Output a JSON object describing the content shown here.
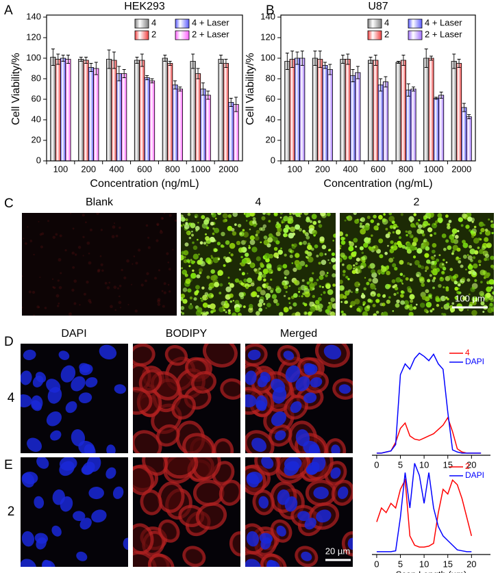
{
  "figure": {
    "panel_labels": [
      "A",
      "B",
      "C",
      "D",
      "E"
    ],
    "c_titles": [
      "Blank",
      "4",
      "2"
    ],
    "c_scale": "100 µm",
    "d_titles": [
      "DAPI",
      "BODIPY",
      "Merged"
    ],
    "d_rows": [
      "4",
      "2"
    ],
    "d_scale": "20 µm"
  },
  "chart_data": [
    {
      "type": "bar",
      "title": "HEK293",
      "x_label": "Concentration (ng/mL)",
      "y_label": "Cell Viability/%",
      "categories": [
        "100",
        "200",
        "400",
        "600",
        "800",
        "1000",
        "2000"
      ],
      "series": [
        {
          "name": "4",
          "color": "#808080",
          "values": [
            101,
            99,
            99,
            98,
            100,
            97,
            99
          ],
          "errors": [
            8,
            2,
            9,
            3,
            3,
            7,
            4
          ]
        },
        {
          "name": "2",
          "color": "#f04040",
          "values": [
            99,
            98,
            98,
            98,
            95,
            85,
            95
          ],
          "errors": [
            5,
            3,
            8,
            6,
            2,
            5,
            4
          ]
        },
        {
          "name": "4 + Laser",
          "color": "#5a5aff",
          "values": [
            100,
            91,
            85,
            81,
            74,
            70,
            57
          ],
          "errors": [
            3,
            4,
            7,
            2,
            4,
            6,
            4
          ]
        },
        {
          "name": "2 + Laser",
          "color": "#ff60ff",
          "values": [
            99,
            90,
            85,
            78,
            70,
            64,
            55
          ],
          "errors": [
            4,
            6,
            4,
            2,
            2,
            4,
            7
          ]
        }
      ],
      "ylim": [
        0,
        140
      ],
      "yticks": [
        0,
        20,
        40,
        60,
        80,
        100,
        120,
        140
      ],
      "legend": "upper right"
    },
    {
      "type": "bar",
      "title": "U87",
      "x_label": "Concentration (ng/mL)",
      "y_label": "Cell Viability/%",
      "categories": [
        "100",
        "200",
        "400",
        "600",
        "800",
        "1000",
        "2000"
      ],
      "series": [
        {
          "name": "4",
          "color": "#808080",
          "values": [
            97,
            100,
            99,
            98,
            96,
            100,
            97
          ],
          "errors": [
            8,
            7,
            4,
            3,
            1,
            9,
            7
          ]
        },
        {
          "name": "2",
          "color": "#f04040",
          "values": [
            99,
            99,
            99,
            98,
            98,
            100,
            95
          ],
          "errors": [
            8,
            8,
            5,
            5,
            5,
            2,
            4
          ]
        },
        {
          "name": "4 + Laser",
          "color": "#5a5aff",
          "values": [
            100,
            93,
            83,
            74,
            69,
            61,
            52
          ],
          "errors": [
            6,
            3,
            6,
            6,
            6,
            1,
            4
          ]
        },
        {
          "name": "2 + Laser",
          "color": "#a070ff",
          "values": [
            100,
            89,
            86,
            77,
            70,
            64,
            43
          ],
          "errors": [
            7,
            5,
            6,
            5,
            2,
            3,
            2
          ]
        }
      ],
      "ylim": [
        0,
        140
      ],
      "yticks": [
        0,
        20,
        40,
        60,
        80,
        100,
        120,
        140
      ],
      "legend": "upper right"
    },
    {
      "type": "line",
      "x": [
        0,
        1,
        2,
        3,
        4,
        5,
        6,
        7,
        8,
        9,
        10,
        11,
        12,
        13,
        14,
        15,
        16,
        17,
        18,
        19,
        20,
        21,
        22
      ],
      "series": [
        {
          "name": "4",
          "color": "#ff0000",
          "values": [
            2,
            2,
            3,
            4,
            12,
            25,
            30,
            18,
            15,
            14,
            16,
            18,
            20,
            24,
            28,
            35,
            22,
            6,
            3,
            2,
            2,
            2,
            2
          ]
        },
        {
          "name": "DAPI",
          "color": "#0000ff",
          "values": [
            2,
            2,
            3,
            4,
            10,
            75,
            85,
            80,
            90,
            95,
            92,
            88,
            94,
            85,
            80,
            40,
            5,
            3,
            2,
            2,
            2,
            2,
            2
          ]
        }
      ],
      "xlim": [
        -1,
        24
      ],
      "xticks": [
        0,
        5,
        10,
        15,
        20
      ],
      "ylim": [
        0,
        100
      ],
      "legend": "upper right"
    },
    {
      "type": "line",
      "x_label": "Scan Length (µm)",
      "x": [
        0,
        1,
        2,
        3,
        4,
        5,
        6,
        7,
        8,
        9,
        10,
        11,
        12,
        13,
        14,
        15,
        16,
        17,
        18,
        19,
        20
      ],
      "series": [
        {
          "name": "2",
          "color": "#ff0000",
          "values": [
            35,
            50,
            45,
            55,
            50,
            70,
            80,
            20,
            10,
            8,
            8,
            9,
            12,
            45,
            70,
            65,
            80,
            75,
            60,
            40,
            20
          ]
        },
        {
          "name": "DAPI",
          "color": "#0000ff",
          "values": [
            3,
            3,
            3,
            3,
            4,
            40,
            88,
            50,
            98,
            85,
            55,
            88,
            50,
            30,
            20,
            15,
            10,
            5,
            4,
            3,
            3
          ]
        }
      ],
      "xlim": [
        -1,
        24
      ],
      "xticks": [
        0,
        5,
        10,
        15,
        20
      ],
      "ylim": [
        0,
        100
      ],
      "legend": "upper right"
    }
  ]
}
